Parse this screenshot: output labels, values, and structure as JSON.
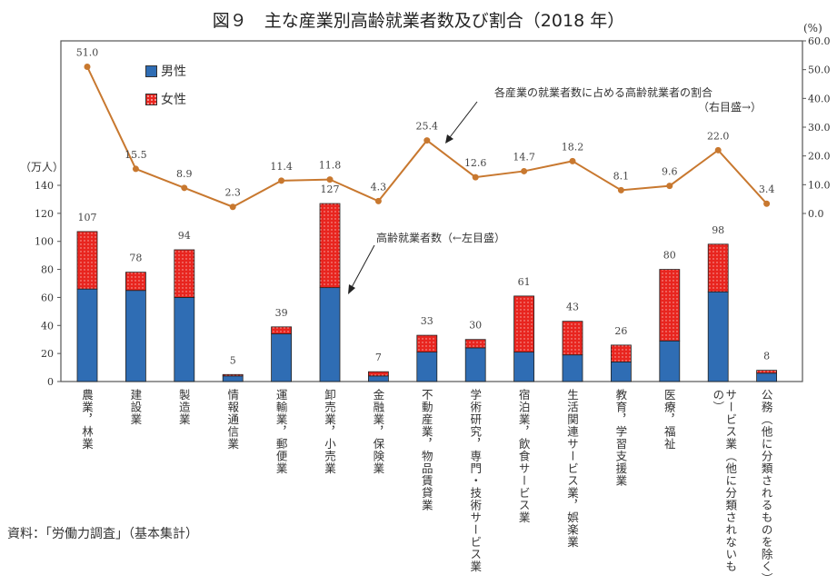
{
  "chart_data": {
    "type": "bar+line",
    "title": "図９　主な産業別高齢就業者数及び割合（2018 年）",
    "categories": [
      "農業，林業",
      "建設業",
      "製造業",
      "情報通信業",
      "運輸業，郵便業",
      "卸売業，小売業",
      "金融業，保険業",
      "不動産業，物品賃貸業",
      "学術研究，専門・技術サービス業",
      "宿泊業，飲食サービス業",
      "生活関連サービス業，娯楽業",
      "教育，学習支援業",
      "医療，福祉",
      "サービス業（他に分類されないもの）",
      "公務（他に分類されるものを除く）"
    ],
    "series": [
      {
        "name": "男性",
        "type": "stacked-bar",
        "axis": "left",
        "color": "#2f6db4",
        "values": [
          66,
          65,
          60,
          4,
          34,
          67,
          4,
          21,
          24,
          21,
          19,
          14,
          29,
          64,
          6
        ]
      },
      {
        "name": "女性",
        "type": "stacked-bar",
        "axis": "left",
        "color": "#e8251f",
        "pattern": "dotted",
        "values": [
          41,
          13,
          34,
          1,
          5,
          60,
          3,
          12,
          6,
          40,
          24,
          12,
          51,
          34,
          2
        ]
      },
      {
        "type": "line",
        "axis": "right",
        "color": "#c8782f",
        "values": [
          51.0,
          15.5,
          8.9,
          2.3,
          11.4,
          11.8,
          4.3,
          25.4,
          12.6,
          14.7,
          18.2,
          8.1,
          9.6,
          22.0,
          3.4
        ]
      }
    ],
    "totals": [
      107,
      78,
      94,
      5,
      39,
      127,
      7,
      33,
      30,
      61,
      43,
      26,
      80,
      98,
      8
    ],
    "left_axis": {
      "label": "（万人）",
      "ylim": [
        0,
        140
      ],
      "ticks": [
        0,
        20,
        40,
        60,
        80,
        100,
        120,
        140
      ]
    },
    "right_axis": {
      "label": "(%)",
      "ylim": [
        0,
        60
      ],
      "ticks": [
        "0.0",
        "10.0",
        "20.0",
        "30.0",
        "40.0",
        "50.0",
        "60.0"
      ]
    },
    "annotations": {
      "ratio_line": "各産業の就業者数に占める高齢就業者の割合",
      "ratio_axis": "（右目盛→）",
      "count_bars": "高齢就業者数（←左目盛）"
    },
    "legend_placement": "top-left",
    "grid": false,
    "source": "資料：「労働力調査」（基本集計）"
  }
}
